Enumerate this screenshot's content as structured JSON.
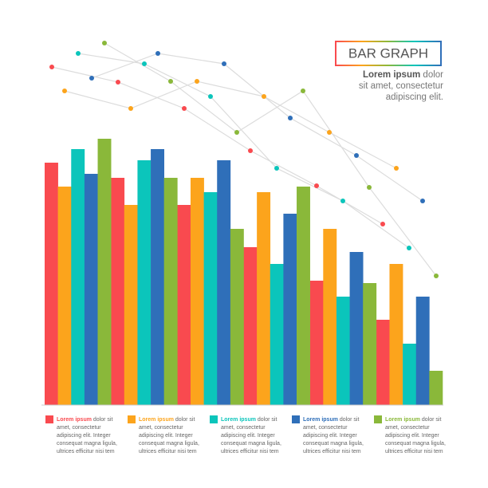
{
  "chart_data": {
    "type": "bar",
    "title": "BAR GRAPH",
    "subtitle": {
      "bold": "Lorem ipsum",
      "lines": [
        "dolor",
        "sit amet, consectetur",
        "adipiscing elit."
      ]
    },
    "categories": [
      null,
      null,
      null,
      null,
      null,
      null
    ],
    "ylim": [
      0,
      340
    ],
    "series": [
      {
        "name": "Lorem ipsum",
        "color": "#f94a4f",
        "values": [
          304,
          285,
          251,
          198,
          156,
          107
        ],
        "legend_text": [
          "dolor sit",
          "amet, consectetur",
          "adipiscing elit. Integer",
          "consequat magna ligula,",
          "ultrices efficitur nisi tem"
        ]
      },
      {
        "name": "Lorem ipsum",
        "color": "#fca41c",
        "values": [
          274,
          251,
          285,
          267,
          221,
          177
        ],
        "legend_text": [
          "dolor sit",
          "amet, consectetur",
          "adipiscing elit. Integer",
          "consequat magna ligula,",
          "ultrices efficitur nisi tem"
        ]
      },
      {
        "name": "Lorem ipsum",
        "color": "#0bc5bb",
        "values": [
          321,
          307,
          267,
          177,
          136,
          77
        ],
        "legend_text": [
          "dolor sit",
          "amet, consectetur",
          "adipiscing elit. Integer",
          "consequat magna ligula,",
          "ultrices efficitur nisi tem"
        ]
      },
      {
        "name": "Lorem ipsum",
        "color": "#2f6fb9",
        "values": [
          290,
          321,
          307,
          240,
          192,
          136
        ],
        "legend_text": [
          "dolor sit",
          "amet, consectetur",
          "adipiscing elit. Integer",
          "consequat magna ligula,",
          "ultrices efficitur nisi tem"
        ]
      },
      {
        "name": "Lorem ipsum",
        "color": "#8ab83a",
        "values": [
          334,
          285,
          221,
          274,
          153,
          43
        ],
        "legend_text": [
          "dolor sit",
          "amet, consectetur",
          "adipiscing elit. Integer",
          "consequat magna ligula,",
          "ultrices efficitur nisi tem"
        ]
      }
    ]
  }
}
